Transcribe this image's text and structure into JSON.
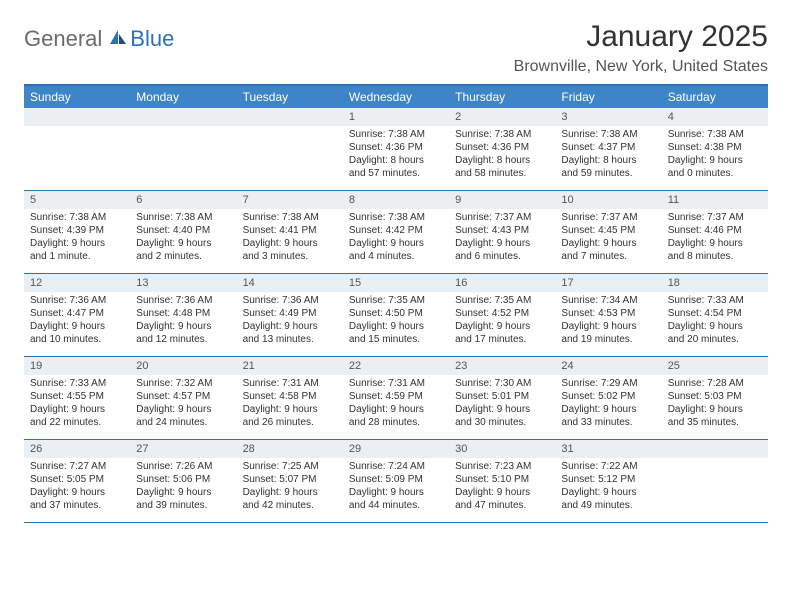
{
  "logo": {
    "general": "General",
    "blue": "Blue"
  },
  "title": "January 2025",
  "location": "Brownville, New York, United States",
  "day_headers": [
    "Sunday",
    "Monday",
    "Tuesday",
    "Wednesday",
    "Thursday",
    "Friday",
    "Saturday"
  ],
  "colors": {
    "header_bg": "#3d85c6",
    "border": "#2a71b8",
    "daynum_bg": "#eceff1"
  },
  "weeks": [
    [
      {
        "day": "",
        "sunrise": "",
        "sunset": "",
        "daylight": ""
      },
      {
        "day": "",
        "sunrise": "",
        "sunset": "",
        "daylight": ""
      },
      {
        "day": "",
        "sunrise": "",
        "sunset": "",
        "daylight": ""
      },
      {
        "day": "1",
        "sunrise": "Sunrise: 7:38 AM",
        "sunset": "Sunset: 4:36 PM",
        "daylight": "Daylight: 8 hours and 57 minutes."
      },
      {
        "day": "2",
        "sunrise": "Sunrise: 7:38 AM",
        "sunset": "Sunset: 4:36 PM",
        "daylight": "Daylight: 8 hours and 58 minutes."
      },
      {
        "day": "3",
        "sunrise": "Sunrise: 7:38 AM",
        "sunset": "Sunset: 4:37 PM",
        "daylight": "Daylight: 8 hours and 59 minutes."
      },
      {
        "day": "4",
        "sunrise": "Sunrise: 7:38 AM",
        "sunset": "Sunset: 4:38 PM",
        "daylight": "Daylight: 9 hours and 0 minutes."
      }
    ],
    [
      {
        "day": "5",
        "sunrise": "Sunrise: 7:38 AM",
        "sunset": "Sunset: 4:39 PM",
        "daylight": "Daylight: 9 hours and 1 minute."
      },
      {
        "day": "6",
        "sunrise": "Sunrise: 7:38 AM",
        "sunset": "Sunset: 4:40 PM",
        "daylight": "Daylight: 9 hours and 2 minutes."
      },
      {
        "day": "7",
        "sunrise": "Sunrise: 7:38 AM",
        "sunset": "Sunset: 4:41 PM",
        "daylight": "Daylight: 9 hours and 3 minutes."
      },
      {
        "day": "8",
        "sunrise": "Sunrise: 7:38 AM",
        "sunset": "Sunset: 4:42 PM",
        "daylight": "Daylight: 9 hours and 4 minutes."
      },
      {
        "day": "9",
        "sunrise": "Sunrise: 7:37 AM",
        "sunset": "Sunset: 4:43 PM",
        "daylight": "Daylight: 9 hours and 6 minutes."
      },
      {
        "day": "10",
        "sunrise": "Sunrise: 7:37 AM",
        "sunset": "Sunset: 4:45 PM",
        "daylight": "Daylight: 9 hours and 7 minutes."
      },
      {
        "day": "11",
        "sunrise": "Sunrise: 7:37 AM",
        "sunset": "Sunset: 4:46 PM",
        "daylight": "Daylight: 9 hours and 8 minutes."
      }
    ],
    [
      {
        "day": "12",
        "sunrise": "Sunrise: 7:36 AM",
        "sunset": "Sunset: 4:47 PM",
        "daylight": "Daylight: 9 hours and 10 minutes."
      },
      {
        "day": "13",
        "sunrise": "Sunrise: 7:36 AM",
        "sunset": "Sunset: 4:48 PM",
        "daylight": "Daylight: 9 hours and 12 minutes."
      },
      {
        "day": "14",
        "sunrise": "Sunrise: 7:36 AM",
        "sunset": "Sunset: 4:49 PM",
        "daylight": "Daylight: 9 hours and 13 minutes."
      },
      {
        "day": "15",
        "sunrise": "Sunrise: 7:35 AM",
        "sunset": "Sunset: 4:50 PM",
        "daylight": "Daylight: 9 hours and 15 minutes."
      },
      {
        "day": "16",
        "sunrise": "Sunrise: 7:35 AM",
        "sunset": "Sunset: 4:52 PM",
        "daylight": "Daylight: 9 hours and 17 minutes."
      },
      {
        "day": "17",
        "sunrise": "Sunrise: 7:34 AM",
        "sunset": "Sunset: 4:53 PM",
        "daylight": "Daylight: 9 hours and 19 minutes."
      },
      {
        "day": "18",
        "sunrise": "Sunrise: 7:33 AM",
        "sunset": "Sunset: 4:54 PM",
        "daylight": "Daylight: 9 hours and 20 minutes."
      }
    ],
    [
      {
        "day": "19",
        "sunrise": "Sunrise: 7:33 AM",
        "sunset": "Sunset: 4:55 PM",
        "daylight": "Daylight: 9 hours and 22 minutes."
      },
      {
        "day": "20",
        "sunrise": "Sunrise: 7:32 AM",
        "sunset": "Sunset: 4:57 PM",
        "daylight": "Daylight: 9 hours and 24 minutes."
      },
      {
        "day": "21",
        "sunrise": "Sunrise: 7:31 AM",
        "sunset": "Sunset: 4:58 PM",
        "daylight": "Daylight: 9 hours and 26 minutes."
      },
      {
        "day": "22",
        "sunrise": "Sunrise: 7:31 AM",
        "sunset": "Sunset: 4:59 PM",
        "daylight": "Daylight: 9 hours and 28 minutes."
      },
      {
        "day": "23",
        "sunrise": "Sunrise: 7:30 AM",
        "sunset": "Sunset: 5:01 PM",
        "daylight": "Daylight: 9 hours and 30 minutes."
      },
      {
        "day": "24",
        "sunrise": "Sunrise: 7:29 AM",
        "sunset": "Sunset: 5:02 PM",
        "daylight": "Daylight: 9 hours and 33 minutes."
      },
      {
        "day": "25",
        "sunrise": "Sunrise: 7:28 AM",
        "sunset": "Sunset: 5:03 PM",
        "daylight": "Daylight: 9 hours and 35 minutes."
      }
    ],
    [
      {
        "day": "26",
        "sunrise": "Sunrise: 7:27 AM",
        "sunset": "Sunset: 5:05 PM",
        "daylight": "Daylight: 9 hours and 37 minutes."
      },
      {
        "day": "27",
        "sunrise": "Sunrise: 7:26 AM",
        "sunset": "Sunset: 5:06 PM",
        "daylight": "Daylight: 9 hours and 39 minutes."
      },
      {
        "day": "28",
        "sunrise": "Sunrise: 7:25 AM",
        "sunset": "Sunset: 5:07 PM",
        "daylight": "Daylight: 9 hours and 42 minutes."
      },
      {
        "day": "29",
        "sunrise": "Sunrise: 7:24 AM",
        "sunset": "Sunset: 5:09 PM",
        "daylight": "Daylight: 9 hours and 44 minutes."
      },
      {
        "day": "30",
        "sunrise": "Sunrise: 7:23 AM",
        "sunset": "Sunset: 5:10 PM",
        "daylight": "Daylight: 9 hours and 47 minutes."
      },
      {
        "day": "31",
        "sunrise": "Sunrise: 7:22 AM",
        "sunset": "Sunset: 5:12 PM",
        "daylight": "Daylight: 9 hours and 49 minutes."
      },
      {
        "day": "",
        "sunrise": "",
        "sunset": "",
        "daylight": ""
      }
    ]
  ]
}
